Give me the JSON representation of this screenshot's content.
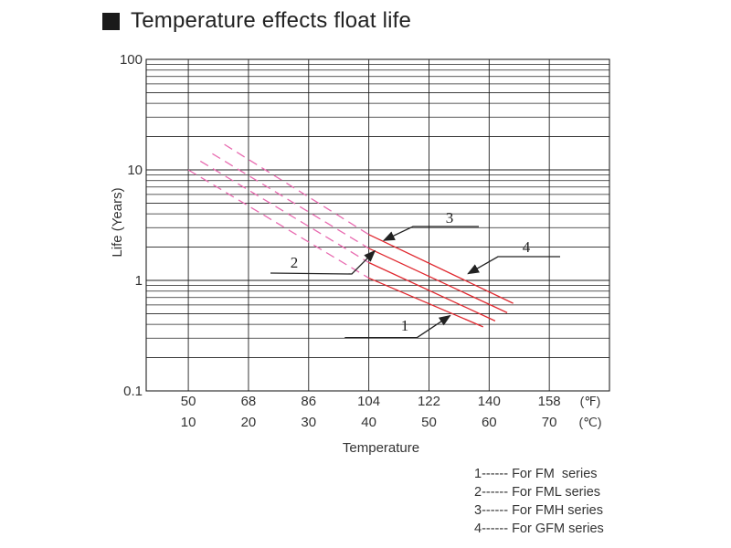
{
  "heading": {
    "title": "Temperature effects float life"
  },
  "chart_data": {
    "type": "line",
    "title": "Temperature effects float life",
    "xlabel": "Temperature",
    "ylabel": "Life (Years)",
    "y_scale": "log",
    "ylim": [
      0.1,
      100
    ],
    "xlim_celsius": [
      3,
      80
    ],
    "y_tick_labels": [
      "100",
      "10",
      "1",
      "0.1"
    ],
    "y_tick_values": [
      100,
      10,
      1,
      0.1
    ],
    "x_ticks_f": [
      "50",
      "68",
      "86",
      "104",
      "122",
      "140",
      "158"
    ],
    "x_ticks_c": [
      "10",
      "20",
      "30",
      "40",
      "50",
      "60",
      "70"
    ],
    "x_tick_values_c": [
      10,
      20,
      30,
      40,
      50,
      60,
      70
    ],
    "unit_f": "(℉)",
    "unit_c": "(℃)",
    "grid": true,
    "series": [
      {
        "label": "1",
        "x_c": [
          10,
          40,
          59
        ],
        "y": [
          10,
          1.05,
          0.38
        ],
        "dashed_until_c": 40,
        "callout_from": [
          0,
          0
        ]
      },
      {
        "label": "2",
        "x_c": [
          12,
          40,
          61
        ],
        "y": [
          12,
          1.45,
          0.43
        ],
        "dashed_until_c": 40
      },
      {
        "label": "3",
        "x_c": [
          14,
          40,
          63
        ],
        "y": [
          14,
          1.95,
          0.51
        ],
        "dashed_until_c": 40
      },
      {
        "label": "4",
        "x_c": [
          16,
          40,
          64
        ],
        "y": [
          17,
          2.6,
          0.62
        ],
        "dashed_until_c": 40
      }
    ],
    "annotations": [
      {
        "label": "1",
        "text_at": [
          45,
          0.34
        ],
        "arrow_to": [
          53.5,
          0.48
        ]
      },
      {
        "label": "2",
        "text_at": [
          14,
          1.2
        ],
        "arrow_to": [
          41,
          1.85
        ]
      },
      {
        "label": "3",
        "text_at": [
          52.5,
          3.2
        ],
        "arrow_to": [
          42.5,
          2.3
        ]
      },
      {
        "label": "4",
        "text_at": [
          67,
          1.75
        ],
        "arrow_to": [
          56.5,
          1.15
        ]
      }
    ],
    "legend": [
      "1------ For FM  series",
      "2------ For FML series",
      "3------ For FMH series",
      "4------ For GFM series"
    ],
    "legend_position": "bottom-right",
    "colors": {
      "solid": "#e0282f",
      "dashed": "#e86bb0",
      "grid": "#222222"
    }
  }
}
